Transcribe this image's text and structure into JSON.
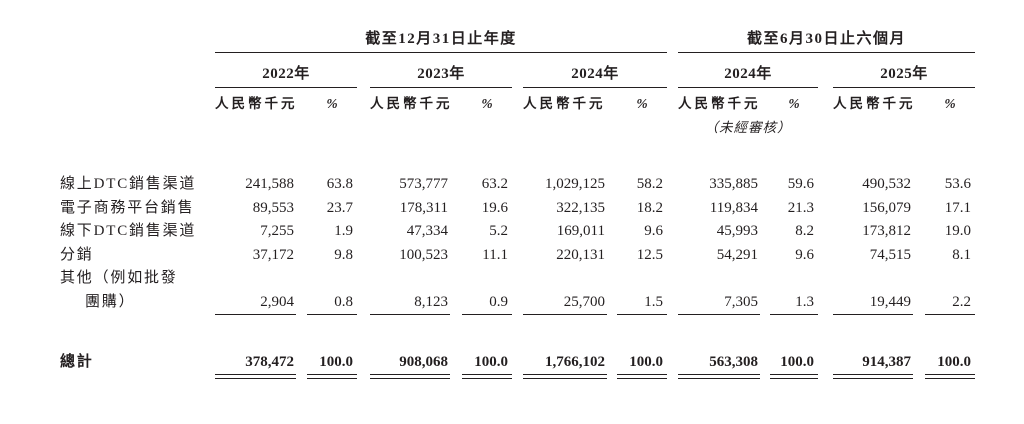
{
  "page": {
    "background": "#ffffff",
    "text_color": "#231f20"
  },
  "table": {
    "period_groups": [
      {
        "label": "截至12月31日止年度"
      },
      {
        "label": "截至6月30日止六個月"
      }
    ],
    "year_headers": [
      "2022年",
      "2023年",
      "2024年",
      "2024年",
      "2025年"
    ],
    "amount_unit_header": "人民幣千元",
    "percent_header": "%",
    "unaudited_note": "（未經審核）",
    "rows": [
      {
        "label": "線上DTC銷售渠道",
        "values": [
          "241,588",
          "63.8",
          "573,777",
          "63.2",
          "1,029,125",
          "58.2",
          "335,885",
          "59.6",
          "490,532",
          "53.6"
        ]
      },
      {
        "label": "電子商務平台銷售",
        "values": [
          "89,553",
          "23.7",
          "178,311",
          "19.6",
          "322,135",
          "18.2",
          "119,834",
          "21.3",
          "156,079",
          "17.1"
        ]
      },
      {
        "label": "線下DTC銷售渠道",
        "values": [
          "7,255",
          "1.9",
          "47,334",
          "5.2",
          "169,011",
          "9.6",
          "45,993",
          "8.2",
          "173,812",
          "19.0"
        ]
      },
      {
        "label": "分銷",
        "values": [
          "37,172",
          "9.8",
          "100,523",
          "11.1",
          "220,131",
          "12.5",
          "54,291",
          "9.6",
          "74,515",
          "8.1"
        ]
      },
      {
        "label_line1": "其他（例如批發",
        "label_line2": "團購）",
        "values": [
          "2,904",
          "0.8",
          "8,123",
          "0.9",
          "25,700",
          "1.5",
          "7,305",
          "1.3",
          "19,449",
          "2.2"
        ]
      }
    ],
    "total_row": {
      "label": "總計",
      "values": [
        "378,472",
        "100.0",
        "908,068",
        "100.0",
        "1,766,102",
        "100.0",
        "563,308",
        "100.0",
        "914,387",
        "100.0"
      ]
    }
  }
}
